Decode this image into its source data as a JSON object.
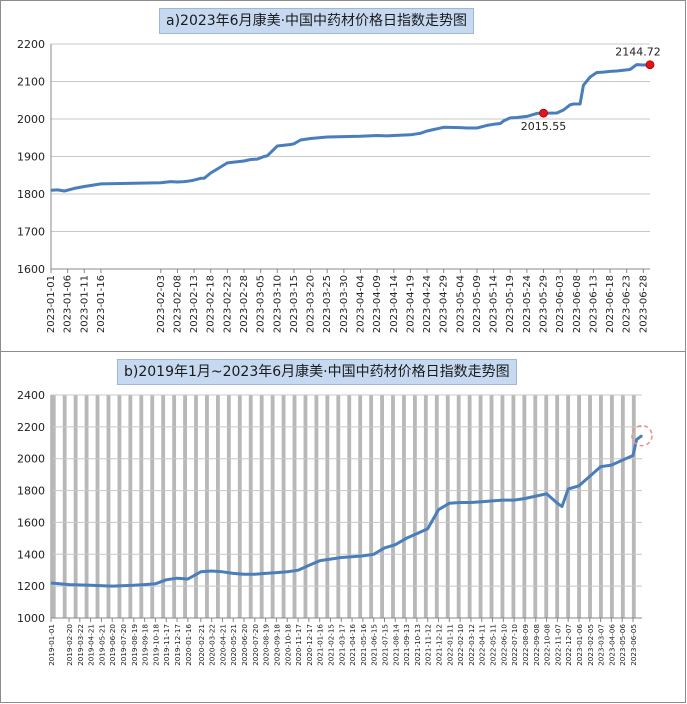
{
  "colors": {
    "line": "#4a7ebb",
    "highlight": "#e3141b",
    "title_bg": "#c6d9f1",
    "bar_fill": "#8c8c8c"
  },
  "chart_data": [
    {
      "type": "line",
      "title": "a)2023年6月康美·中国中药材价格日指数走势图",
      "ylim": [
        1600,
        2200
      ],
      "yticks": [
        1600,
        1700,
        1800,
        1900,
        2000,
        2100,
        2200
      ],
      "grid": true,
      "xticks": [
        "2023-01-01",
        "2023-01-06",
        "2023-01-11",
        "2023-01-16",
        "2023-02-03",
        "2023-02-08",
        "2023-02-13",
        "2023-02-18",
        "2023-02-23",
        "2023-02-28",
        "2023-03-05",
        "2023-03-10",
        "2023-03-15",
        "2023-03-20",
        "2023-03-25",
        "2023-03-30",
        "2023-04-04",
        "2023-04-09",
        "2023-04-14",
        "2023-04-19",
        "2023-04-24",
        "2023-04-29",
        "2023-05-04",
        "2023-05-09",
        "2023-05-14",
        "2023-05-19",
        "2023-05-24",
        "2023-05-29",
        "2023-06-03",
        "2023-06-08",
        "2023-06-13",
        "2023-06-18",
        "2023-06-23",
        "2023-06-28"
      ],
      "x": [
        "2023-01-01",
        "2023-01-03",
        "2023-01-05",
        "2023-01-08",
        "2023-01-11",
        "2023-01-16",
        "2023-02-03",
        "2023-02-06",
        "2023-02-08",
        "2023-02-10",
        "2023-02-11",
        "2023-02-13",
        "2023-02-15",
        "2023-02-16",
        "2023-02-18",
        "2023-02-23",
        "2023-02-26",
        "2023-02-28",
        "2023-03-02",
        "2023-03-04",
        "2023-03-06",
        "2023-03-07",
        "2023-03-10",
        "2023-03-12",
        "2023-03-14",
        "2023-03-15",
        "2023-03-17",
        "2023-03-20",
        "2023-03-25",
        "2023-03-30",
        "2023-04-04",
        "2023-04-09",
        "2023-04-12",
        "2023-04-14",
        "2023-04-19",
        "2023-04-22",
        "2023-04-24",
        "2023-04-26",
        "2023-04-29",
        "2023-05-04",
        "2023-05-06",
        "2023-05-09",
        "2023-05-12",
        "2023-05-14",
        "2023-05-16",
        "2023-05-17",
        "2023-05-19",
        "2023-05-21",
        "2023-05-24",
        "2023-05-27",
        "2023-05-29",
        "2023-06-02",
        "2023-06-04",
        "2023-06-06",
        "2023-06-07",
        "2023-06-09",
        "2023-06-10",
        "2023-06-12",
        "2023-06-14",
        "2023-06-16",
        "2023-06-18",
        "2023-06-20",
        "2023-06-22",
        "2023-06-24",
        "2023-06-26",
        "2023-06-28",
        "2023-06-30"
      ],
      "y": [
        1810,
        1811,
        1808,
        1815,
        1820,
        1827,
        1830,
        1833,
        1832,
        1833,
        1834,
        1837,
        1842,
        1842,
        1856,
        1883,
        1886,
        1888,
        1892,
        1893,
        1900,
        1902,
        1928,
        1930,
        1932,
        1934,
        1944,
        1948,
        1952,
        1953,
        1954,
        1956,
        1955,
        1956,
        1958,
        1962,
        1968,
        1972,
        1978,
        1977,
        1976,
        1976,
        1983,
        1986,
        1988,
        1995,
        2003,
        2004,
        2007,
        2015,
        2015.55,
        2016,
        2024,
        2038,
        2040,
        2040,
        2090,
        2112,
        2124,
        2125,
        2127,
        2128,
        2130,
        2132,
        2145,
        2144,
        2144.72
      ],
      "annotations": [
        {
          "label": "2015.55",
          "x": "2023-05-29",
          "y": 2015.55
        },
        {
          "label": "2144.72",
          "x": "2023-06-30",
          "y": 2144.72
        }
      ]
    },
    {
      "type": "line",
      "title": "b)2019年1月~2023年6月康美·中国中药材价格日指数走势图",
      "ylim": [
        1000,
        2400
      ],
      "yticks": [
        1000,
        1200,
        1400,
        1600,
        1800,
        2000,
        2200,
        2400
      ],
      "grid": true,
      "background": "dense vertical bars",
      "xticks": [
        "2019-01-01",
        "2019-02-20",
        "2019-03-22",
        "2019-04-21",
        "2019-05-21",
        "2019-06-20",
        "2019-07-20",
        "2019-08-19",
        "2019-09-18",
        "2019-10-18",
        "2019-11-17",
        "2019-12-17",
        "2020-01-16",
        "2020-02-21",
        "2020-03-22",
        "2020-04-21",
        "2020-05-21",
        "2020-06-20",
        "2020-07-20",
        "2020-08-19",
        "2020-09-18",
        "2020-10-18",
        "2020-11-17",
        "2020-12-17",
        "2021-01-16",
        "2021-02-15",
        "2021-03-17",
        "2021-04-16",
        "2021-05-16",
        "2021-06-15",
        "2021-07-15",
        "2021-08-14",
        "2021-09-13",
        "2021-10-13",
        "2021-11-12",
        "2021-12-12",
        "2022-01-11",
        "2022-02-10",
        "2022-03-12",
        "2022-04-11",
        "2022-05-11",
        "2022-06-10",
        "2022-07-10",
        "2022-08-09",
        "2022-09-08",
        "2022-10-08",
        "2022-11-07",
        "2022-12-07",
        "2023-01-06",
        "2023-02-05",
        "2023-03-07",
        "2023-04-06",
        "2023-05-06",
        "2023-06-05"
      ],
      "x": [
        "2019-01-01",
        "2019-02-20",
        "2019-04-21",
        "2019-06-20",
        "2019-08-19",
        "2019-09-18",
        "2019-10-18",
        "2019-11-17",
        "2019-12-17",
        "2020-01-16",
        "2020-02-21",
        "2020-03-22",
        "2020-04-21",
        "2020-05-21",
        "2020-06-20",
        "2020-07-20",
        "2020-08-19",
        "2020-09-18",
        "2020-10-18",
        "2020-11-17",
        "2020-12-17",
        "2021-01-16",
        "2021-02-15",
        "2021-03-17",
        "2021-04-16",
        "2021-05-16",
        "2021-06-15",
        "2021-07-15",
        "2021-08-14",
        "2021-09-13",
        "2021-10-13",
        "2021-11-12",
        "2021-12-12",
        "2022-01-11",
        "2022-02-10",
        "2022-03-12",
        "2022-04-11",
        "2022-05-11",
        "2022-06-10",
        "2022-07-10",
        "2022-08-09",
        "2022-09-08",
        "2022-10-08",
        "2022-11-07",
        "2022-11-20",
        "2022-12-07",
        "2023-01-06",
        "2023-02-05",
        "2023-03-07",
        "2023-04-06",
        "2023-05-06",
        "2023-06-05",
        "2023-06-15",
        "2023-06-30"
      ],
      "y": [
        1220,
        1210,
        1205,
        1200,
        1205,
        1210,
        1215,
        1240,
        1250,
        1245,
        1290,
        1295,
        1290,
        1280,
        1275,
        1275,
        1280,
        1285,
        1290,
        1300,
        1330,
        1360,
        1370,
        1380,
        1385,
        1390,
        1400,
        1440,
        1460,
        1500,
        1530,
        1560,
        1680,
        1720,
        1725,
        1725,
        1730,
        1735,
        1740,
        1740,
        1750,
        1765,
        1780,
        1720,
        1700,
        1810,
        1830,
        1890,
        1950,
        1960,
        1990,
        2020,
        2120,
        2145
      ],
      "annotations": [
        {
          "label": "",
          "x": "2023-06-30",
          "y": 2145,
          "style": "dashed-circle"
        }
      ]
    }
  ]
}
